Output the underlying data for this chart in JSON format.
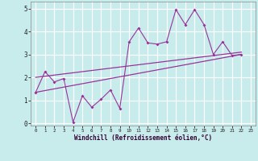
{
  "xlabel": "Windchill (Refroidissement éolien,°C)",
  "bg_color": "#c8ecec",
  "grid_color": "#ffffff",
  "line_color": "#993399",
  "xlim": [
    -0.5,
    23.5
  ],
  "ylim": [
    -0.1,
    5.3
  ],
  "xticks": [
    0,
    1,
    2,
    3,
    4,
    5,
    6,
    7,
    8,
    9,
    10,
    11,
    12,
    13,
    14,
    15,
    16,
    17,
    18,
    19,
    20,
    21,
    22,
    23
  ],
  "yticks": [
    0,
    1,
    2,
    3,
    4,
    5
  ],
  "series1_x": [
    0,
    1,
    2,
    3,
    4,
    5,
    6,
    7,
    8,
    9,
    10,
    11,
    12,
    13,
    14,
    15,
    16,
    17,
    18,
    19,
    20,
    21,
    22
  ],
  "series1_y": [
    1.35,
    2.25,
    1.8,
    1.95,
    0.05,
    1.2,
    0.7,
    1.05,
    1.45,
    0.65,
    3.55,
    4.15,
    3.5,
    3.45,
    3.55,
    4.95,
    4.3,
    4.95,
    4.3,
    3.0,
    3.55,
    2.95,
    3.0
  ],
  "trend1_x": [
    0,
    22
  ],
  "trend1_y": [
    1.35,
    3.0
  ],
  "trend2_x": [
    0,
    22
  ],
  "trend2_y": [
    2.0,
    3.1
  ]
}
